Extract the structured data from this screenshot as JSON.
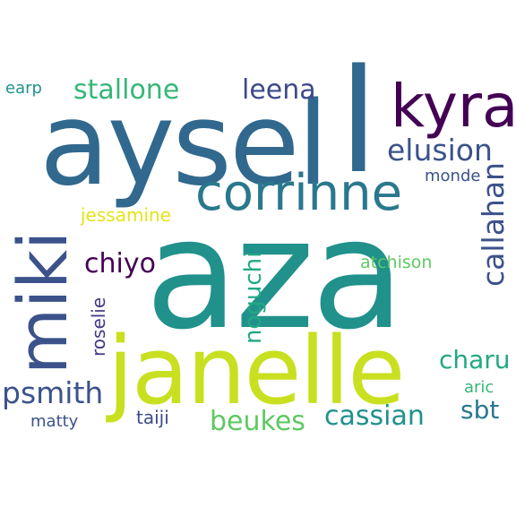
{
  "words": [
    {
      "text": "aza",
      "color": "#21918c"
    },
    {
      "text": "aysel",
      "color": "#31688e"
    },
    {
      "text": "janelle",
      "color": "#c8e020"
    },
    {
      "text": "l",
      "color": "#31688e"
    },
    {
      "text": "miki",
      "color": "#3b528b"
    },
    {
      "text": "kyra",
      "color": "#440154"
    },
    {
      "text": "corrinne",
      "color": "#2a788e"
    },
    {
      "text": "elusion",
      "color": "#3b528b"
    },
    {
      "text": "callahan",
      "color": "#3b528b"
    },
    {
      "text": "stallone",
      "color": "#35b779"
    },
    {
      "text": "leena",
      "color": "#3e4a89"
    },
    {
      "text": "psmith",
      "color": "#3b528b"
    },
    {
      "text": "cassian",
      "color": "#21918c"
    },
    {
      "text": "beukes",
      "color": "#5ec962"
    },
    {
      "text": "charu",
      "color": "#22a884"
    },
    {
      "text": "chiyo",
      "color": "#440154"
    },
    {
      "text": "noguchi",
      "color": "#22a884"
    },
    {
      "text": "sbt",
      "color": "#2a788e"
    },
    {
      "text": "jessamine",
      "color": "#e5e419"
    },
    {
      "text": "atchison",
      "color": "#5ec962"
    },
    {
      "text": "monde",
      "color": "#3b528b"
    },
    {
      "text": "earp",
      "color": "#21918c"
    },
    {
      "text": "roselie",
      "color": "#443a83"
    },
    {
      "text": "taiji",
      "color": "#3e4a89"
    },
    {
      "text": "matty",
      "color": "#3b528b"
    },
    {
      "text": "aric",
      "color": "#35b779"
    }
  ]
}
